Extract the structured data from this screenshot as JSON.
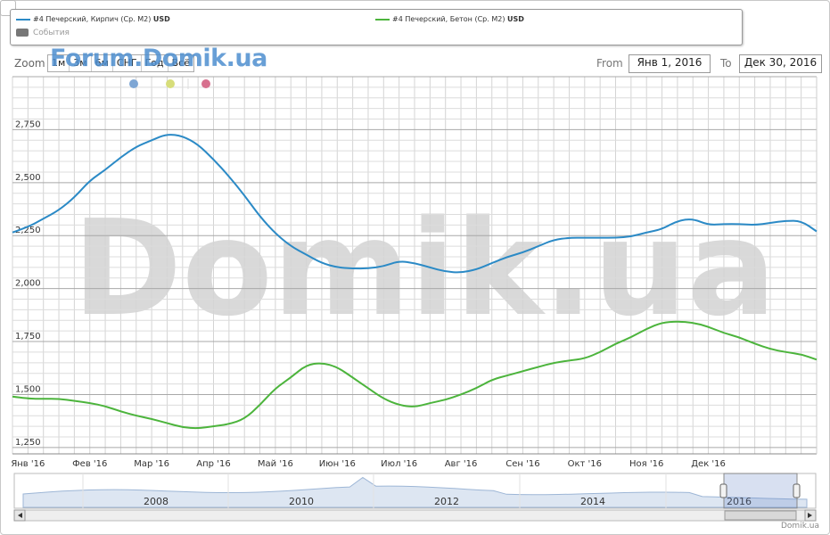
{
  "legend": {
    "series1_label": "#4 Печерский, Кирпич (Ср. М2)",
    "series1_unit": "USD",
    "series2_label": "#4 Печерский, Бетон (Ср. М2)",
    "series2_unit": "USD",
    "events_label": "События"
  },
  "toolbar": {
    "zoom_label": "Zoom",
    "zoom_buttons": [
      "1м",
      "3м",
      "6м",
      "СНГ",
      "Год",
      "Всё"
    ],
    "from_label": "From",
    "from_value": "Янв 1, 2016",
    "to_label": "To",
    "to_value": "Дек 30, 2016"
  },
  "watermarks": {
    "forum": "Forum.Domik.ua",
    "main": "Domik.ua"
  },
  "credit": "Domik.ua",
  "colors": {
    "series1": "#2b8ac6",
    "series2": "#4cb43c",
    "event_blue": "#7ea6d4",
    "event_yellow": "#d7dd7a",
    "event_red": "#d7708e"
  },
  "navigator": {
    "years": [
      "2008",
      "2010",
      "2012",
      "2014",
      "2016"
    ]
  },
  "chart_data": {
    "type": "line",
    "x_tick_labels": [
      "Янв '16",
      "Фев '16",
      "Мар '16",
      "Апр '16",
      "Май '16",
      "Июн '16",
      "Июл '16",
      "Авг '16",
      "Сен '16",
      "Окт '16",
      "Ноя '16",
      "Дек '16"
    ],
    "y_tick_labels": [
      "1,250",
      "1,500",
      "1,750",
      "2,000",
      "2,250",
      "2,500",
      "2,750"
    ],
    "ylim": [
      1220,
      3000
    ],
    "grid": true,
    "series": [
      {
        "name": "#4 Печерский, Кирпич (Ср. М2) USD",
        "color": "#2b8ac6",
        "points": [
          [
            0.0,
            2265
          ],
          [
            0.5,
            2290
          ],
          [
            1.0,
            2330
          ],
          [
            1.5,
            2370
          ],
          [
            2.0,
            2430
          ],
          [
            2.5,
            2510
          ],
          [
            3.0,
            2560
          ],
          [
            3.5,
            2620
          ],
          [
            4.0,
            2670
          ],
          [
            4.5,
            2700
          ],
          [
            5.0,
            2730
          ],
          [
            5.5,
            2720
          ],
          [
            6.0,
            2680
          ],
          [
            6.5,
            2610
          ],
          [
            7.0,
            2530
          ],
          [
            7.5,
            2440
          ],
          [
            8.0,
            2340
          ],
          [
            8.5,
            2260
          ],
          [
            9.0,
            2200
          ],
          [
            9.5,
            2160
          ],
          [
            10.0,
            2120
          ],
          [
            10.5,
            2100
          ],
          [
            11.0,
            2095
          ],
          [
            11.5,
            2095
          ],
          [
            12.0,
            2105
          ],
          [
            12.5,
            2130
          ],
          [
            13.0,
            2120
          ],
          [
            13.5,
            2100
          ],
          [
            14.0,
            2080
          ],
          [
            14.5,
            2075
          ],
          [
            15.0,
            2090
          ],
          [
            15.5,
            2120
          ],
          [
            16.0,
            2150
          ],
          [
            16.5,
            2170
          ],
          [
            17.0,
            2200
          ],
          [
            17.5,
            2230
          ],
          [
            18.0,
            2240
          ],
          [
            18.5,
            2240
          ],
          [
            19.0,
            2240
          ],
          [
            19.5,
            2240
          ],
          [
            20.0,
            2245
          ],
          [
            20.5,
            2265
          ],
          [
            21.0,
            2280
          ],
          [
            21.5,
            2320
          ],
          [
            22.0,
            2330
          ],
          [
            22.5,
            2300
          ],
          [
            23.0,
            2305
          ],
          [
            23.5,
            2305
          ],
          [
            24.0,
            2300
          ],
          [
            24.5,
            2310
          ],
          [
            25.0,
            2320
          ],
          [
            25.5,
            2320
          ],
          [
            26.0,
            2270
          ]
        ]
      },
      {
        "name": "#4 Печерский, Бетон (Ср. М2) USD",
        "color": "#4cb43c",
        "points": [
          [
            0.0,
            1490
          ],
          [
            0.5,
            1480
          ],
          [
            1.0,
            1480
          ],
          [
            1.5,
            1480
          ],
          [
            2.0,
            1470
          ],
          [
            2.5,
            1460
          ],
          [
            3.0,
            1445
          ],
          [
            3.5,
            1420
          ],
          [
            4.0,
            1400
          ],
          [
            4.5,
            1385
          ],
          [
            5.0,
            1365
          ],
          [
            5.5,
            1345
          ],
          [
            6.0,
            1340
          ],
          [
            6.5,
            1350
          ],
          [
            7.0,
            1360
          ],
          [
            7.5,
            1385
          ],
          [
            8.0,
            1450
          ],
          [
            8.5,
            1530
          ],
          [
            9.0,
            1580
          ],
          [
            9.5,
            1640
          ],
          [
            10.0,
            1650
          ],
          [
            10.5,
            1630
          ],
          [
            11.0,
            1580
          ],
          [
            11.5,
            1530
          ],
          [
            12.0,
            1480
          ],
          [
            12.5,
            1450
          ],
          [
            13.0,
            1440
          ],
          [
            13.5,
            1460
          ],
          [
            14.0,
            1475
          ],
          [
            14.5,
            1500
          ],
          [
            15.0,
            1530
          ],
          [
            15.5,
            1570
          ],
          [
            16.0,
            1590
          ],
          [
            16.5,
            1610
          ],
          [
            17.0,
            1630
          ],
          [
            17.5,
            1650
          ],
          [
            18.0,
            1660
          ],
          [
            18.5,
            1670
          ],
          [
            19.0,
            1700
          ],
          [
            19.5,
            1740
          ],
          [
            20.0,
            1770
          ],
          [
            20.5,
            1810
          ],
          [
            21.0,
            1840
          ],
          [
            21.5,
            1845
          ],
          [
            22.0,
            1840
          ],
          [
            22.5,
            1820
          ],
          [
            23.0,
            1790
          ],
          [
            23.5,
            1770
          ],
          [
            24.0,
            1740
          ],
          [
            24.5,
            1715
          ],
          [
            25.0,
            1700
          ],
          [
            25.5,
            1690
          ],
          [
            26.0,
            1665
          ]
        ]
      }
    ]
  }
}
